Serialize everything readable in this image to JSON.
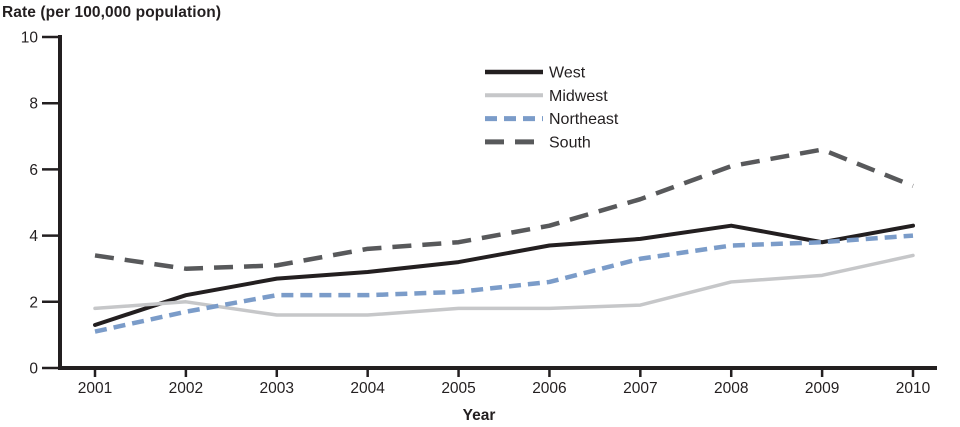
{
  "title": "Rate (per 100,000 population)",
  "chart_data": {
    "type": "line",
    "title": "Rate (per 100,000 population)",
    "xlabel": "Year",
    "ylabel": "Rate (per 100,000 population)",
    "x": [
      "2001",
      "2002",
      "2003",
      "2004",
      "2005",
      "2006",
      "2007",
      "2008",
      "2009",
      "2010"
    ],
    "series": [
      {
        "name": "West",
        "values": [
          1.3,
          2.2,
          2.7,
          2.9,
          3.2,
          3.7,
          3.9,
          4.3,
          3.8,
          4.3
        ],
        "color": "#231f20",
        "line_style": "solid",
        "line_width": 4
      },
      {
        "name": "Midwest",
        "values": [
          1.8,
          2.0,
          1.6,
          1.6,
          1.8,
          1.8,
          1.9,
          2.6,
          2.8,
          3.4
        ],
        "color": "#c6c7c9",
        "line_style": "solid",
        "line_width": 3.5
      },
      {
        "name": "Northeast",
        "values": [
          1.1,
          1.7,
          2.2,
          2.2,
          2.3,
          2.6,
          3.3,
          3.7,
          3.8,
          4.0
        ],
        "color": "#7b9cc9",
        "line_style": "dashed-short",
        "line_width": 4.5
      },
      {
        "name": "South",
        "values": [
          3.4,
          3.0,
          3.1,
          3.6,
          3.8,
          4.3,
          5.1,
          6.1,
          6.6,
          5.5
        ],
        "color": "#58595b",
        "line_style": "dashed-long",
        "line_width": 4.5
      }
    ],
    "ylim": [
      0,
      10
    ],
    "yticks": [
      0,
      2,
      4,
      6,
      8,
      10
    ],
    "grid": false,
    "legend_position": "top-center",
    "axis_color": "#231f20",
    "background": "#ffffff"
  }
}
